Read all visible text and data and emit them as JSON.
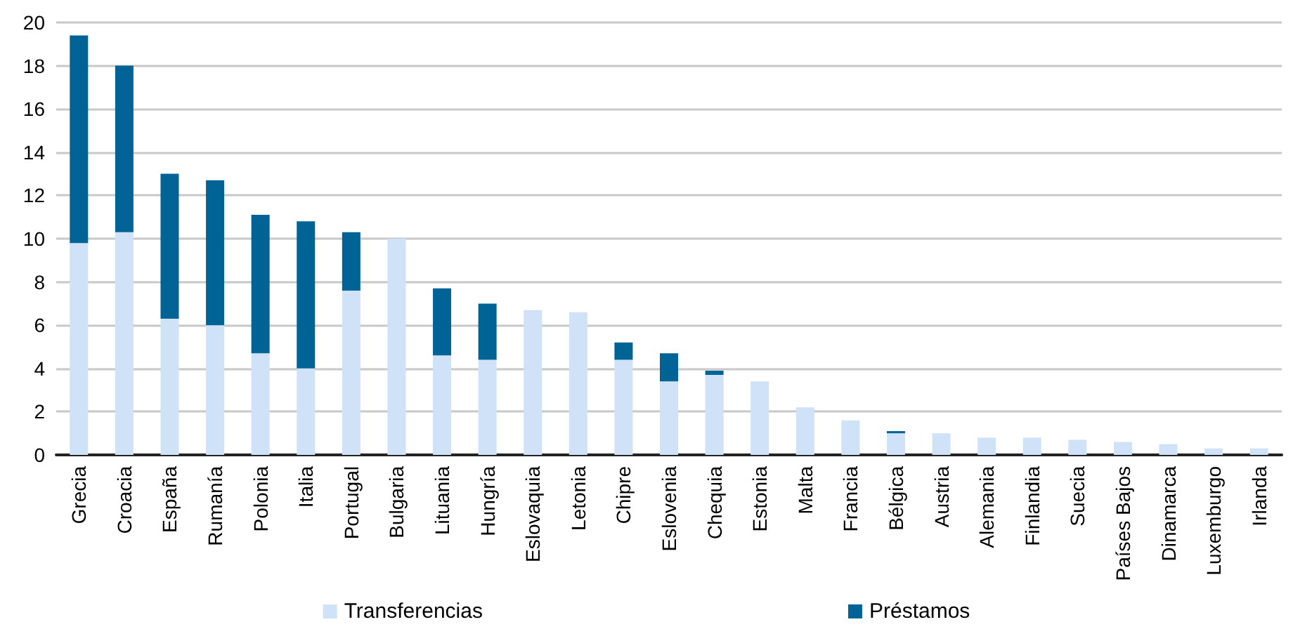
{
  "chart_data": {
    "type": "bar",
    "stacked": true,
    "categories": [
      "Grecia",
      "Croacia",
      "España",
      "Rumanía",
      "Polonia",
      "Italia",
      "Portugal",
      "Bulgaria",
      "Lituania",
      "Hungría",
      "Eslovaquia",
      "Letonia",
      "Chipre",
      "Eslovenia",
      "Chequia",
      "Estonia",
      "Malta",
      "Francia",
      "Bélgica",
      "Austria",
      "Alemania",
      "Finlandia",
      "Suecia",
      "Países Bajos",
      "Dinamarca",
      "Luxemburgo",
      "Irlanda"
    ],
    "series": [
      {
        "name": "Transferencias",
        "color": "#cfe2f7",
        "values": [
          9.8,
          10.3,
          6.3,
          6.0,
          4.7,
          4.0,
          7.6,
          10.0,
          4.6,
          4.4,
          6.7,
          6.6,
          4.4,
          3.4,
          3.7,
          3.4,
          2.2,
          1.6,
          1.0,
          1.0,
          0.8,
          0.8,
          0.7,
          0.6,
          0.5,
          0.3,
          0.3
        ]
      },
      {
        "name": "Préstamos",
        "color": "#006396",
        "values": [
          9.6,
          7.7,
          6.7,
          6.7,
          6.4,
          6.8,
          2.7,
          0,
          3.1,
          2.6,
          0,
          0,
          0.8,
          1.3,
          0.2,
          0,
          0,
          0,
          0.1,
          0,
          0,
          0,
          0,
          0,
          0,
          0,
          0
        ]
      }
    ],
    "ylim": [
      0,
      20
    ],
    "yticks": [
      0,
      2,
      4,
      6,
      8,
      10,
      12,
      14,
      16,
      18,
      20
    ],
    "grid": "y",
    "legend": "bottom"
  }
}
